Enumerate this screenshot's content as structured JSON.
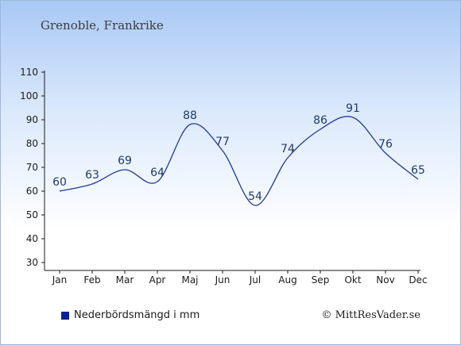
{
  "header": {
    "title": "Grenoble, Frankrike"
  },
  "legend": {
    "label": "Nederbördsmängd i mm",
    "swatch_color": "#0a1f9e"
  },
  "copyright": "© MittResVader.se",
  "colors": {
    "line": "#1f3a9e",
    "label": "#1f3a6e"
  },
  "chart_data": {
    "type": "line",
    "title": "Grenoble, Frankrike",
    "categories": [
      "Jan",
      "Feb",
      "Mar",
      "Apr",
      "Maj",
      "Jun",
      "Jul",
      "Aug",
      "Sep",
      "Okt",
      "Nov",
      "Dec"
    ],
    "series": [
      {
        "name": "Nederbördsmängd i mm",
        "values": [
          60,
          63,
          69,
          64,
          88,
          77,
          54,
          74,
          86,
          91,
          76,
          65
        ]
      }
    ],
    "yticks": [
      30,
      40,
      50,
      60,
      70,
      80,
      90,
      100,
      110
    ],
    "ylim": [
      30,
      110
    ],
    "grid": false,
    "legend_position": "bottom-left"
  }
}
